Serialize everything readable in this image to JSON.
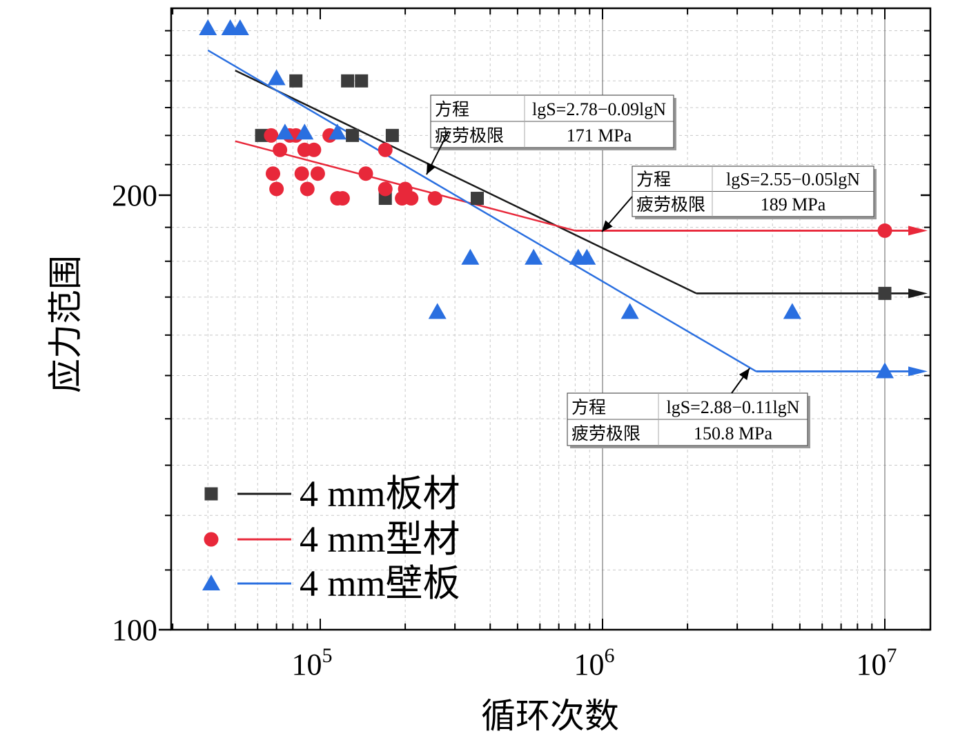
{
  "chart_data": {
    "type": "scatter",
    "xlabel": "循环次数",
    "ylabel": "应力范围",
    "x_scale": "log",
    "y_scale": "log",
    "xlim": [
      30000,
      15000000
    ],
    "ylim": [
      100,
      270
    ],
    "x_ticks": [
      {
        "value": 100000,
        "base": "10",
        "exp": "5"
      },
      {
        "value": 1000000,
        "base": "10",
        "exp": "6"
      },
      {
        "value": 10000000,
        "base": "10",
        "exp": "7"
      }
    ],
    "y_ticks": [
      {
        "value": 100,
        "label": "100"
      },
      {
        "value": 200,
        "label": "200"
      }
    ],
    "series": [
      {
        "name": "4 mm板材",
        "color": "#1a1a1a",
        "marker": "square",
        "points": [
          [
            82000,
            240
          ],
          [
            125000,
            240
          ],
          [
            140000,
            240
          ],
          [
            62000,
            220
          ],
          [
            130000,
            220
          ],
          [
            180000,
            220
          ],
          [
            360000,
            199
          ],
          [
            170000,
            199
          ],
          [
            10000000,
            171
          ]
        ],
        "fit_line": [
          [
            50000,
            244
          ],
          [
            2150000,
            171
          ]
        ],
        "runout_line": [
          [
            2150000,
            171
          ],
          [
            15000000,
            171
          ]
        ]
      },
      {
        "name": "4 mm型材",
        "color": "#e8283a",
        "marker": "circle",
        "points": [
          [
            67000,
            220
          ],
          [
            78000,
            220
          ],
          [
            82000,
            220
          ],
          [
            108000,
            220
          ],
          [
            72000,
            215
          ],
          [
            88000,
            215
          ],
          [
            95000,
            215
          ],
          [
            170000,
            215
          ],
          [
            68000,
            207
          ],
          [
            86000,
            207
          ],
          [
            98000,
            207
          ],
          [
            145000,
            207
          ],
          [
            70000,
            202
          ],
          [
            90000,
            202
          ],
          [
            170000,
            202
          ],
          [
            200000,
            202
          ],
          [
            115000,
            199
          ],
          [
            120000,
            199
          ],
          [
            195000,
            199
          ],
          [
            210000,
            199
          ],
          [
            255000,
            199
          ],
          [
            10000000,
            189
          ]
        ],
        "fit_line": [
          [
            50000,
            218
          ],
          [
            800000,
            189
          ]
        ],
        "runout_line": [
          [
            800000,
            189
          ],
          [
            15000000,
            189
          ]
        ]
      },
      {
        "name": "4 mm壁板",
        "color": "#2a6fe0",
        "marker": "triangle",
        "points": [
          [
            40000,
            261
          ],
          [
            48000,
            261
          ],
          [
            52000,
            261
          ],
          [
            70000,
            241
          ],
          [
            75000,
            221
          ],
          [
            88000,
            221
          ],
          [
            115000,
            221
          ],
          [
            340000,
            181
          ],
          [
            570000,
            181
          ],
          [
            820000,
            181
          ],
          [
            880000,
            181
          ],
          [
            260000,
            166
          ],
          [
            1250000,
            166
          ],
          [
            4700000,
            166
          ],
          [
            10000000,
            151
          ]
        ],
        "fit_line": [
          [
            40000,
            252
          ],
          [
            3500000,
            151
          ]
        ],
        "runout_line": [
          [
            3500000,
            151
          ],
          [
            15000000,
            151
          ]
        ]
      }
    ],
    "annotations": [
      {
        "series": "4 mm板材",
        "eq_label": "方程",
        "eq_value": "lgS=2.78−0.09lgN",
        "limit_label": "疲劳极限",
        "limit_value": "171 MPa"
      },
      {
        "series": "4 mm型材",
        "eq_label": "方程",
        "eq_value": "lgS=2.55−0.05lgN",
        "limit_label": "疲劳极限",
        "limit_value": "189 MPa"
      },
      {
        "series": "4 mm壁板",
        "eq_label": "方程",
        "eq_value": "lgS=2.88−0.11lgN",
        "limit_label": "疲劳极限",
        "limit_value": "150.8 MPa"
      }
    ]
  }
}
